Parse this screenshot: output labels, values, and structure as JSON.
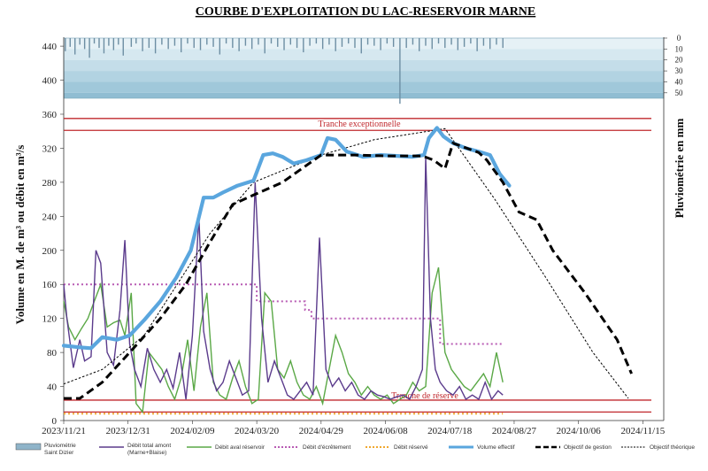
{
  "chart_data": {
    "type": "line",
    "title": "COURBE D'EXPLOITATION DU LAC-RESERVOIR  MARNE",
    "ylabel": "Volume en M. de m³ ou débit en m³/s",
    "y2label": "Pluviométrie en mm",
    "ylim": [
      0,
      360
    ],
    "yticks": [
      0,
      40,
      80,
      120,
      160,
      200,
      240,
      280,
      320,
      360
    ],
    "upper_yticks": [
      400,
      440
    ],
    "rain_ticks": [
      0,
      10,
      20,
      30,
      40,
      50
    ],
    "xticks": [
      "2023/11/21",
      "2023/12/31",
      "2024/02/09",
      "2024/03/20",
      "2024/04/29",
      "2024/06/08",
      "2024/07/18",
      "2024/08/27",
      "2024/10/06",
      "2024/11/15"
    ],
    "x_start": "2023/11/21",
    "x_end": "2024/11/28",
    "band_labels": [
      "Tranche exceptionnelle",
      "Tranche de réserve"
    ],
    "hlines": [
      {
        "y": 355,
        "color": "#c0282d"
      },
      {
        "y": 341,
        "color": "#c0282d"
      },
      {
        "y": 24,
        "color": "#c0282d"
      },
      {
        "y": 10,
        "color": "#c0282d"
      }
    ],
    "legend": [
      {
        "label": "Pluviométrie Saint Dizier",
        "color": "#8fb4c9"
      },
      {
        "label": "Débit total amont (Marne+Blaise)",
        "color": "#5b3b8c"
      },
      {
        "label": "Débit aval réservoir",
        "color": "#5aa846"
      },
      {
        "label": "Débit d'écrêtement",
        "color": "#b85cb4"
      },
      {
        "label": "Débit réservé",
        "color": "#f0a830"
      },
      {
        "label": "Volume effectif",
        "color": "#5aa6de"
      },
      {
        "label": "Objectif de gestion",
        "color": "#000000"
      },
      {
        "label": "Objectif théorique",
        "color": "#000000"
      }
    ],
    "series": [
      {
        "name": "Volume effectif",
        "color": "#5aa6de",
        "x": [
          "2023/11/21",
          "2023/12/01",
          "2023/12/08",
          "2023/12/15",
          "2023/12/24",
          "2024/01/01",
          "2024/01/10",
          "2024/01/20",
          "2024/01/30",
          "2024/02/08",
          "2024/02/16",
          "2024/02/22",
          "2024/02/28",
          "2024/03/08",
          "2024/03/18",
          "2024/03/24",
          "2024/03/30",
          "2024/04/05",
          "2024/04/12",
          "2024/04/20",
          "2024/04/29",
          "2024/05/03",
          "2024/05/08",
          "2024/05/15",
          "2024/05/25",
          "2024/06/05",
          "2024/06/15",
          "2024/06/25",
          "2024/07/02",
          "2024/07/05",
          "2024/07/10",
          "2024/07/14",
          "2024/07/20",
          "2024/07/28",
          "2024/08/05",
          "2024/08/12",
          "2024/08/18",
          "2024/08/24"
        ],
        "y": [
          88,
          86,
          85,
          98,
          95,
          100,
          118,
          140,
          168,
          200,
          262,
          262,
          268,
          276,
          282,
          312,
          314,
          310,
          302,
          306,
          312,
          332,
          330,
          316,
          310,
          312,
          311,
          310,
          312,
          332,
          344,
          334,
          326,
          320,
          316,
          312,
          290,
          276
        ]
      },
      {
        "name": "Objectif de gestion",
        "color": "#000000",
        "x": [
          "2023/11/21",
          "2023/12/01",
          "2023/12/15",
          "2024/01/01",
          "2024/01/20",
          "2024/02/05",
          "2024/02/20",
          "2024/03/05",
          "2024/03/18",
          "2024/04/05",
          "2024/04/29",
          "2024/05/20",
          "2024/06/10",
          "2024/07/01",
          "2024/07/08",
          "2024/07/15",
          "2024/07/20",
          "2024/08/05",
          "2024/08/10",
          "2024/08/20",
          "2024/08/30",
          "2024/09/10",
          "2024/09/20",
          "2024/10/10",
          "2024/10/30",
          "2024/11/08"
        ],
        "y": [
          26,
          26,
          45,
          80,
          120,
          160,
          210,
          254,
          265,
          280,
          312,
          312,
          311,
          311,
          306,
          296,
          326,
          315,
          306,
          280,
          245,
          236,
          200,
          150,
          95,
          55
        ]
      },
      {
        "name": "Objectif théorique",
        "color": "#000000",
        "x": [
          "2023/11/21",
          "2023/12/15",
          "2024/01/10",
          "2024/02/20",
          "2024/03/18",
          "2024/04/29",
          "2024/06/01",
          "2024/07/15",
          "2024/08/15",
          "2024/09/15",
          "2024/10/15",
          "2024/11/06"
        ],
        "y": [
          43,
          60,
          100,
          220,
          280,
          312,
          330,
          343,
          260,
          170,
          80,
          26
        ]
      },
      {
        "name": "Débit d'écrêtement",
        "color": "#b85cb4",
        "x": [
          "2023/11/21",
          "2024/03/20",
          "2024/03/20",
          "2024/04/19",
          "2024/04/19",
          "2024/04/23",
          "2024/04/23",
          "2024/07/12",
          "2024/07/12",
          "2024/08/20"
        ],
        "y": [
          160,
          160,
          140,
          140,
          130,
          130,
          120,
          120,
          90,
          90
        ]
      },
      {
        "name": "Débit réservé",
        "color": "#f0a830",
        "x": [
          "2023/11/21",
          "2024/08/20"
        ],
        "y": [
          8,
          8
        ]
      },
      {
        "name": "Débit total amont (Marne+Blaise)",
        "color": "#5b3b8c",
        "x": [
          "2023/11/21",
          "2023/11/23",
          "2023/11/27",
          "2023/12/01",
          "2023/12/04",
          "2023/12/08",
          "2023/12/11",
          "2023/12/14",
          "2023/12/18",
          "2023/12/22",
          "2023/12/26",
          "2023/12/29",
          "2024/01/01",
          "2024/01/04",
          "2024/01/08",
          "2024/01/12",
          "2024/01/16",
          "2024/01/20",
          "2024/01/24",
          "2024/01/28",
          "2024/02/01",
          "2024/02/05",
          "2024/02/09",
          "2024/02/13",
          "2024/02/16",
          "2024/02/20",
          "2024/02/24",
          "2024/02/28",
          "2024/03/03",
          "2024/03/07",
          "2024/03/11",
          "2024/03/15",
          "2024/03/19",
          "2024/03/23",
          "2024/03/27",
          "2024/03/31",
          "2024/04/04",
          "2024/04/08",
          "2024/04/12",
          "2024/04/16",
          "2024/04/20",
          "2024/04/24",
          "2024/04/28",
          "2024/05/02",
          "2024/05/06",
          "2024/05/10",
          "2024/05/14",
          "2024/05/18",
          "2024/05/22",
          "2024/05/26",
          "2024/05/30",
          "2024/06/03",
          "2024/06/07",
          "2024/06/11",
          "2024/06/15",
          "2024/06/19",
          "2024/06/23",
          "2024/06/27",
          "2024/07/01",
          "2024/07/03",
          "2024/07/06",
          "2024/07/09",
          "2024/07/12",
          "2024/07/16",
          "2024/07/20",
          "2024/07/24",
          "2024/07/28",
          "2024/08/01",
          "2024/08/05",
          "2024/08/09",
          "2024/08/13",
          "2024/08/17",
          "2024/08/20"
        ],
        "y": [
          160,
          120,
          62,
          95,
          70,
          75,
          200,
          185,
          80,
          65,
          130,
          212,
          90,
          60,
          40,
          85,
          60,
          45,
          60,
          38,
          80,
          25,
          100,
          240,
          105,
          60,
          35,
          45,
          70,
          50,
          30,
          35,
          280,
          120,
          45,
          70,
          50,
          30,
          25,
          35,
          45,
          30,
          215,
          60,
          40,
          50,
          35,
          45,
          30,
          25,
          35,
          30,
          28,
          25,
          28,
          30,
          25,
          40,
          60,
          310,
          120,
          60,
          45,
          35,
          30,
          40,
          25,
          30,
          25,
          45,
          25,
          35,
          30
        ]
      },
      {
        "name": "Débit aval réservoir",
        "color": "#5aa846",
        "x": [
          "2023/11/21",
          "2023/11/24",
          "2023/11/28",
          "2023/12/02",
          "2023/12/06",
          "2023/12/10",
          "2023/12/14",
          "2023/12/18",
          "2023/12/22",
          "2023/12/26",
          "2023/12/29",
          "2024/01/02",
          "2024/01/05",
          "2024/01/09",
          "2024/01/13",
          "2024/01/17",
          "2024/01/21",
          "2024/01/25",
          "2024/01/29",
          "2024/02/02",
          "2024/02/06",
          "2024/02/10",
          "2024/02/14",
          "2024/02/18",
          "2024/02/22",
          "2024/02/26",
          "2024/03/01",
          "2024/03/05",
          "2024/03/09",
          "2024/03/13",
          "2024/03/17",
          "2024/03/21",
          "2024/03/25",
          "2024/03/29",
          "2024/04/02",
          "2024/04/06",
          "2024/04/10",
          "2024/04/14",
          "2024/04/18",
          "2024/04/22",
          "2024/04/26",
          "2024/04/30",
          "2024/05/04",
          "2024/05/08",
          "2024/05/12",
          "2024/05/16",
          "2024/05/20",
          "2024/05/24",
          "2024/05/28",
          "2024/06/01",
          "2024/06/05",
          "2024/06/09",
          "2024/06/13",
          "2024/06/17",
          "2024/06/21",
          "2024/06/25",
          "2024/06/29",
          "2024/07/03",
          "2024/07/07",
          "2024/07/11",
          "2024/07/15",
          "2024/07/19",
          "2024/07/23",
          "2024/07/27",
          "2024/07/31",
          "2024/08/04",
          "2024/08/08",
          "2024/08/12",
          "2024/08/16",
          "2024/08/20"
        ],
        "y": [
          140,
          110,
          95,
          108,
          120,
          140,
          160,
          110,
          115,
          118,
          100,
          150,
          20,
          10,
          80,
          70,
          60,
          40,
          25,
          50,
          95,
          35,
          110,
          150,
          45,
          30,
          25,
          50,
          70,
          40,
          20,
          25,
          150,
          140,
          60,
          50,
          70,
          45,
          30,
          25,
          40,
          20,
          60,
          100,
          80,
          55,
          45,
          30,
          40,
          30,
          25,
          30,
          20,
          25,
          30,
          45,
          35,
          40,
          150,
          180,
          80,
          60,
          50,
          40,
          35,
          45,
          55,
          40,
          80,
          45
        ]
      }
    ],
    "rainfall": {
      "name": "Pluviométrie Saint Dizier",
      "x": [
        "2023/11/22",
        "2023/11/25",
        "2023/11/28",
        "2023/12/01",
        "2023/12/04",
        "2023/12/07",
        "2023/12/10",
        "2023/12/13",
        "2023/12/16",
        "2023/12/19",
        "2023/12/22",
        "2023/12/25",
        "2023/12/28",
        "2024/01/02",
        "2024/01/05",
        "2024/01/09",
        "2024/01/13",
        "2024/01/17",
        "2024/01/21",
        "2024/01/25",
        "2024/01/29",
        "2024/02/02",
        "2024/02/06",
        "2024/02/10",
        "2024/02/14",
        "2024/02/18",
        "2024/02/22",
        "2024/02/26",
        "2024/03/01",
        "2024/03/05",
        "2024/03/09",
        "2024/03/13",
        "2024/03/17",
        "2024/03/21",
        "2024/03/25",
        "2024/03/29",
        "2024/04/02",
        "2024/04/06",
        "2024/04/10",
        "2024/04/14",
        "2024/04/18",
        "2024/04/22",
        "2024/04/26",
        "2024/04/30",
        "2024/05/04",
        "2024/05/08",
        "2024/05/12",
        "2024/05/16",
        "2024/05/20",
        "2024/05/24",
        "2024/05/28",
        "2024/06/01",
        "2024/06/05",
        "2024/06/09",
        "2024/06/13",
        "2024/06/17",
        "2024/06/21",
        "2024/06/25",
        "2024/06/29",
        "2024/07/03",
        "2024/07/07",
        "2024/07/11",
        "2024/07/15",
        "2024/07/19",
        "2024/07/23",
        "2024/07/27",
        "2024/07/31",
        "2024/08/04",
        "2024/08/08",
        "2024/08/12",
        "2024/08/16",
        "2024/08/20"
      ],
      "mm": [
        12,
        8,
        15,
        6,
        10,
        18,
        5,
        9,
        14,
        7,
        11,
        6,
        16,
        8,
        5,
        12,
        9,
        14,
        6,
        10,
        7,
        13,
        5,
        9,
        11,
        6,
        8,
        15,
        5,
        9,
        12,
        7,
        10,
        6,
        14,
        5,
        8,
        11,
        6,
        9,
        13,
        7,
        5,
        10,
        6,
        12,
        8,
        5,
        9,
        14,
        6,
        7,
        11,
        5,
        8,
        60,
        9,
        6,
        12,
        7,
        10,
        5,
        9,
        6,
        11,
        8,
        5,
        12,
        7,
        10,
        6,
        9
      ]
    }
  }
}
